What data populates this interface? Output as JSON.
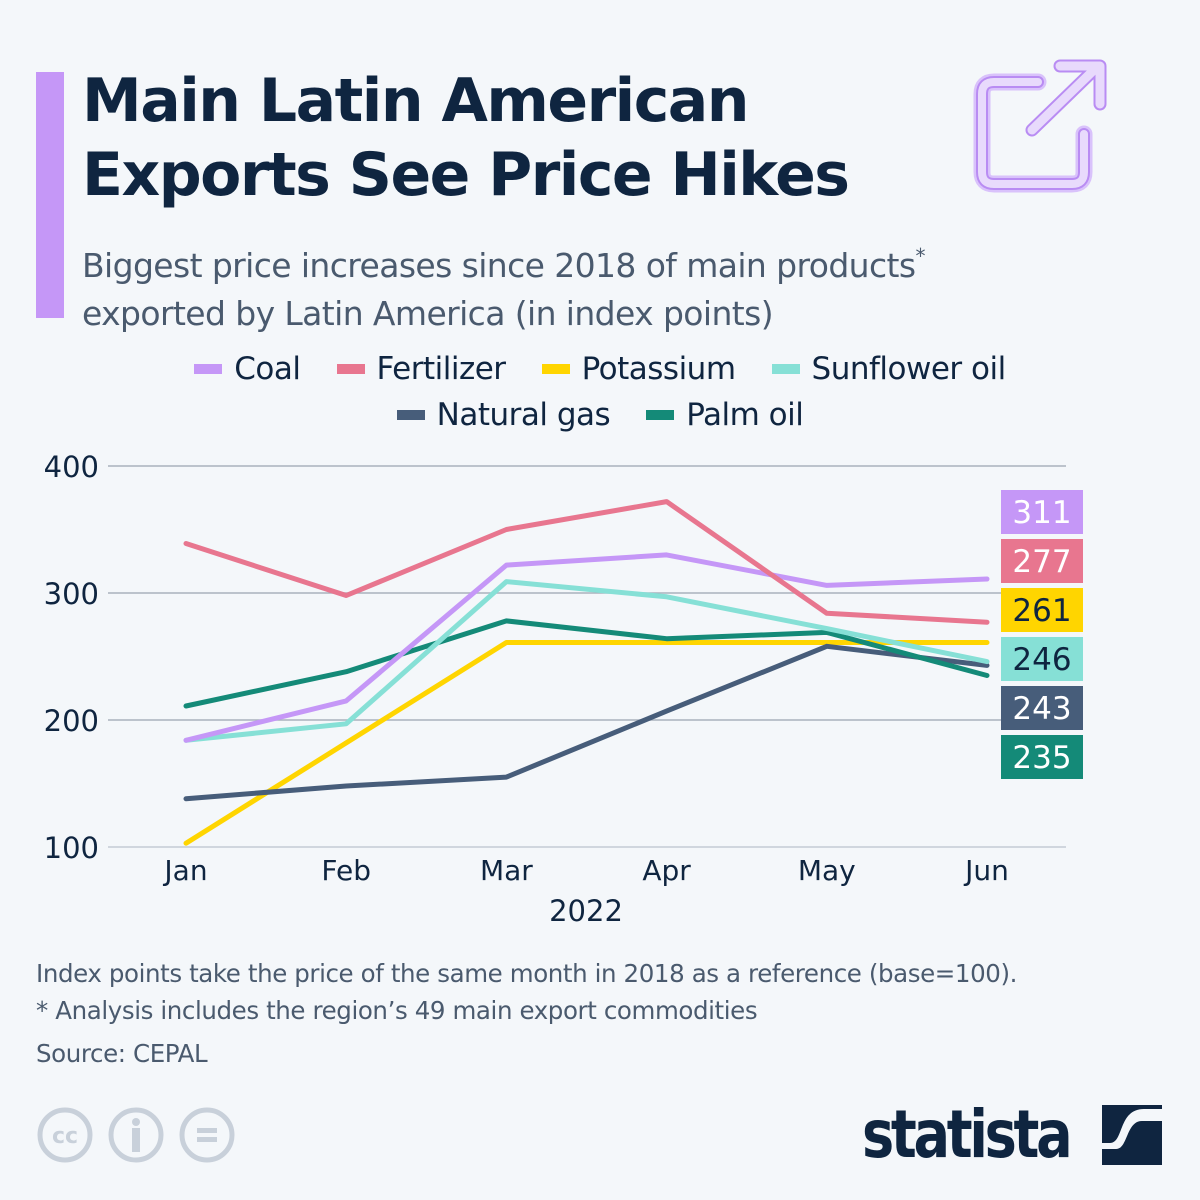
{
  "header": {
    "title_line1": "Main Latin American",
    "title_line2": "Exports See Price Hikes",
    "subtitle_line1": "Biggest price increases since 2018 of main products",
    "subtitle_asterisk": "*",
    "subtitle_line2": "exported by Latin America (in index points)",
    "accent_color": "#c597f7",
    "share_icon": "external-link-icon"
  },
  "chart_data": {
    "type": "line",
    "title": "Main Latin American Exports See Price Hikes",
    "subtitle": "Biggest price increases since 2018 of main products exported by Latin America (in index points)",
    "xlabel": "2022",
    "ylabel": "",
    "categories": [
      "Jan",
      "Feb",
      "Mar",
      "Apr",
      "May",
      "Jun"
    ],
    "yticks": [
      100,
      200,
      300,
      400
    ],
    "ylim": [
      100,
      400
    ],
    "grid": true,
    "legend_position": "top-center",
    "series": [
      {
        "name": "Coal",
        "color": "#c597f7",
        "label_text_color": "#ffffff",
        "values": [
          184,
          215,
          322,
          330,
          306,
          311
        ],
        "end_label": "311"
      },
      {
        "name": "Fertilizer",
        "color": "#e8768f",
        "label_text_color": "#ffffff",
        "values": [
          339,
          298,
          350,
          372,
          284,
          277
        ],
        "end_label": "277"
      },
      {
        "name": "Potassium",
        "color": "#ffd500",
        "label_text_color": "#0f2540",
        "values": [
          103,
          182,
          261,
          261,
          261,
          261
        ],
        "end_label": "261"
      },
      {
        "name": "Sunflower oil",
        "color": "#86e0d6",
        "label_text_color": "#0f2540",
        "values": [
          184,
          197,
          309,
          297,
          272,
          246
        ],
        "end_label": "246"
      },
      {
        "name": "Natural gas",
        "color": "#475d7a",
        "label_text_color": "#ffffff",
        "values": [
          138,
          148,
          155,
          207,
          258,
          243
        ],
        "end_label": "243"
      },
      {
        "name": "Palm oil",
        "color": "#148a78",
        "label_text_color": "#ffffff",
        "values": [
          211,
          238,
          278,
          264,
          269,
          235
        ],
        "end_label": "235"
      }
    ]
  },
  "legend": {
    "row1": [
      {
        "name": "Coal",
        "color": "#c597f7"
      },
      {
        "name": "Fertilizer",
        "color": "#e8768f"
      },
      {
        "name": "Potassium",
        "color": "#ffd500"
      },
      {
        "name": "Sunflower oil",
        "color": "#86e0d6"
      }
    ],
    "row2": [
      {
        "name": "Natural gas",
        "color": "#475d7a"
      },
      {
        "name": "Palm oil",
        "color": "#148a78"
      }
    ]
  },
  "footer": {
    "note1": "Index points take the price of the same month in 2018 as a reference (base=100).",
    "note2": "* Analysis includes the region’s 49 main export commodities",
    "source": "Source: CEPAL",
    "license_icons": [
      "creative-commons-icon",
      "attribution-icon",
      "no-derivatives-icon"
    ],
    "brand": "statista"
  }
}
